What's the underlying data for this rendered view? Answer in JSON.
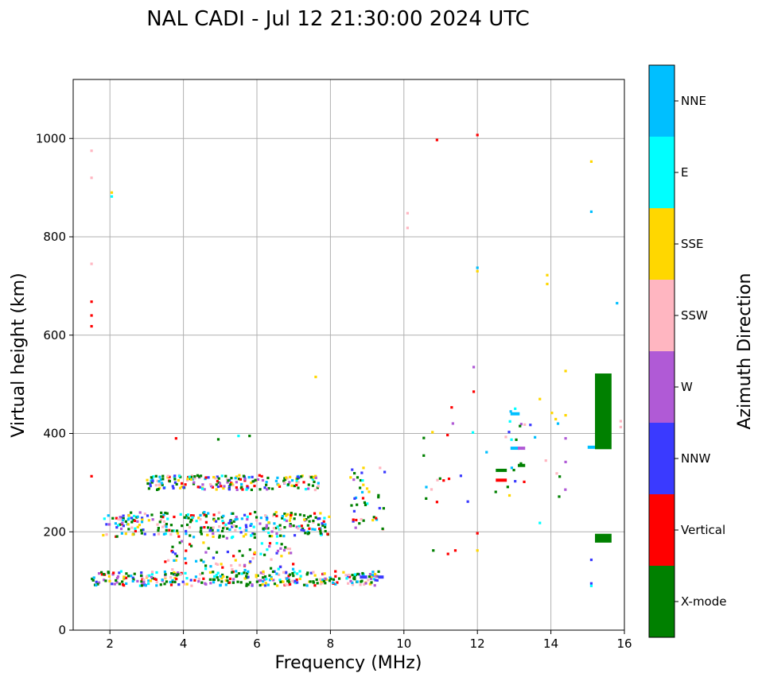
{
  "chart_data": {
    "type": "scatter",
    "title": "NAL CADI - Jul 12 21:30:00 2024 UTC",
    "xlabel": "Frequency (MHz)",
    "ylabel": "Virtual height (km)",
    "xlim": [
      1,
      16
    ],
    "ylim": [
      0,
      1120
    ],
    "xticks": [
      2,
      4,
      6,
      8,
      10,
      12,
      14,
      16
    ],
    "yticks": [
      0,
      200,
      400,
      600,
      800,
      1000
    ],
    "grid": true,
    "colorbar": {
      "label": "Azimuth Direction",
      "categories": [
        {
          "name": "X-mode",
          "color": "#008000"
        },
        {
          "name": "Vertical",
          "color": "#ff0000"
        },
        {
          "name": "NNW",
          "color": "#3a3aff"
        },
        {
          "name": "W",
          "color": "#b05ad6"
        },
        {
          "name": "SSW",
          "color": "#ffb6c1"
        },
        {
          "name": "SSE",
          "color": "#ffd700"
        },
        {
          "name": "E",
          "color": "#00ffff"
        },
        {
          "name": "NNE",
          "color": "#00bfff"
        }
      ]
    },
    "clusters": [
      {
        "f": [
          1.5,
          9.4
        ],
        "h": [
          90,
          120
        ],
        "n": 340
      },
      {
        "f": [
          1.8,
          8.0
        ],
        "h": [
          190,
          240
        ],
        "n": 300
      },
      {
        "f": [
          3.0,
          7.8
        ],
        "h": [
          285,
          315
        ],
        "n": 200
      },
      {
        "f": [
          3.5,
          7.0
        ],
        "h": [
          120,
          190
        ],
        "n": 80
      },
      {
        "f": [
          8.5,
          9.5
        ],
        "h": [
          200,
          330
        ],
        "n": 40
      },
      {
        "f": [
          10.5,
          14.5
        ],
        "h": [
          260,
          460
        ],
        "n": 45
      }
    ],
    "points": [
      {
        "f": 1.5,
        "h": 975,
        "c": "SSW"
      },
      {
        "f": 1.5,
        "h": 920,
        "c": "SSW"
      },
      {
        "f": 1.5,
        "h": 745,
        "c": "SSW"
      },
      {
        "f": 1.5,
        "h": 668,
        "c": "Vertical"
      },
      {
        "f": 1.5,
        "h": 640,
        "c": "Vertical"
      },
      {
        "f": 1.5,
        "h": 618,
        "c": "Vertical"
      },
      {
        "f": 1.5,
        "h": 313,
        "c": "Vertical"
      },
      {
        "f": 2.05,
        "h": 890,
        "c": "SSE"
      },
      {
        "f": 2.05,
        "h": 882,
        "c": "E"
      },
      {
        "f": 3.8,
        "h": 390,
        "c": "Vertical"
      },
      {
        "f": 4.95,
        "h": 388,
        "c": "X-mode"
      },
      {
        "f": 5.5,
        "h": 395,
        "c": "E"
      },
      {
        "f": 5.8,
        "h": 395,
        "c": "X-mode"
      },
      {
        "f": 7.6,
        "h": 515,
        "c": "SSE"
      },
      {
        "f": 10.1,
        "h": 848,
        "c": "SSW"
      },
      {
        "f": 10.1,
        "h": 818,
        "c": "SSW"
      },
      {
        "f": 10.9,
        "h": 997,
        "c": "Vertical"
      },
      {
        "f": 12.0,
        "h": 1007,
        "c": "Vertical"
      },
      {
        "f": 12.0,
        "h": 737,
        "c": "NNE"
      },
      {
        "f": 12.0,
        "h": 730,
        "c": "SSE"
      },
      {
        "f": 13.9,
        "h": 722,
        "c": "SSE"
      },
      {
        "f": 13.9,
        "h": 704,
        "c": "SSE"
      },
      {
        "f": 15.1,
        "h": 953,
        "c": "SSE"
      },
      {
        "f": 15.1,
        "h": 851,
        "c": "NNE"
      },
      {
        "f": 15.8,
        "h": 665,
        "c": "NNE"
      },
      {
        "f": 14.4,
        "h": 527,
        "c": "SSE"
      },
      {
        "f": 13.7,
        "h": 470,
        "c": "SSE"
      },
      {
        "f": 11.9,
        "h": 535,
        "c": "W"
      },
      {
        "f": 11.9,
        "h": 485,
        "c": "Vertical"
      },
      {
        "f": 11.3,
        "h": 453,
        "c": "Vertical"
      },
      {
        "f": 14.4,
        "h": 437,
        "c": "SSE"
      },
      {
        "f": 15.9,
        "h": 425,
        "c": "SSW"
      },
      {
        "f": 15.9,
        "h": 413,
        "c": "SSW"
      },
      {
        "f": 14.4,
        "h": 390,
        "c": "W"
      },
      {
        "f": 14.4,
        "h": 342,
        "c": "W"
      },
      {
        "f": 13.7,
        "h": 218,
        "c": "E"
      },
      {
        "f": 15.1,
        "h": 143,
        "c": "NNW"
      },
      {
        "f": 15.1,
        "h": 95,
        "c": "NNW"
      },
      {
        "f": 15.1,
        "h": 90,
        "c": "E"
      },
      {
        "f": 12.0,
        "h": 197,
        "c": "Vertical"
      },
      {
        "f": 12.0,
        "h": 162,
        "c": "SSE"
      },
      {
        "f": 11.2,
        "h": 155,
        "c": "Vertical"
      },
      {
        "f": 11.4,
        "h": 162,
        "c": "Vertical"
      },
      {
        "f": 10.8,
        "h": 162,
        "c": "X-mode"
      },
      {
        "f": 8.9,
        "h": 330,
        "c": "SSE"
      },
      {
        "f": 9.35,
        "h": 330,
        "c": "SSW"
      }
    ],
    "bars": [
      {
        "f": [
          12.5,
          12.8
        ],
        "h": 325,
        "c": "X-mode"
      },
      {
        "f": [
          12.5,
          12.8
        ],
        "h": 305,
        "c": "Vertical"
      },
      {
        "f": [
          12.9,
          13.15
        ],
        "h": 440,
        "c": "NNE"
      },
      {
        "f": [
          12.9,
          13.15
        ],
        "h": 370,
        "c": "NNE"
      },
      {
        "f": [
          13.1,
          13.3
        ],
        "h": 370,
        "c": "W"
      },
      {
        "f": [
          13.1,
          13.3
        ],
        "h": 335,
        "c": "X-mode"
      },
      {
        "f": [
          15.0,
          15.3
        ],
        "h": 372,
        "c": "NNE"
      },
      {
        "f": [
          8.8,
          9.0
        ],
        "h": 108,
        "c": "NNW"
      },
      {
        "f": [
          9.3,
          9.45
        ],
        "h": 108,
        "c": "NNW"
      }
    ],
    "blocks": [
      {
        "f": [
          15.2,
          15.65
        ],
        "h": [
          368,
          522
        ],
        "c": "X-mode"
      },
      {
        "f": [
          15.2,
          15.65
        ],
        "h": [
          178,
          196
        ],
        "c": "X-mode"
      }
    ]
  }
}
